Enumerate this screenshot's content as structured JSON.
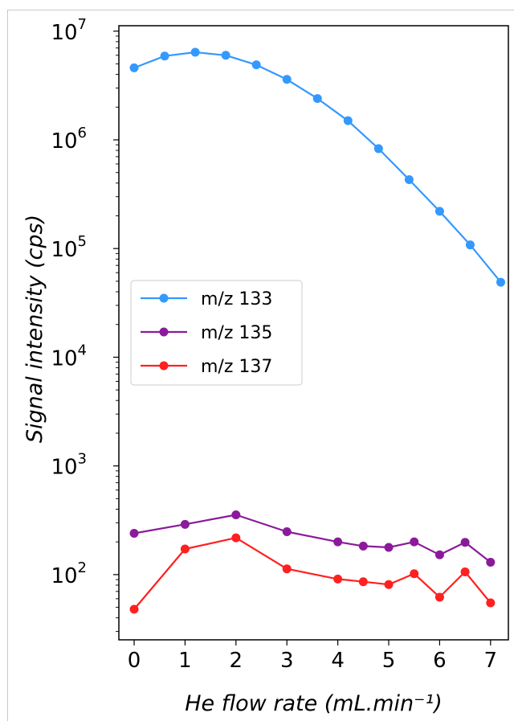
{
  "chart_data": {
    "type": "line",
    "xlabel": "He flow rate (mL.min⁻¹)",
    "ylabel": "Signal intensity (cps)",
    "xlim": [
      -0.3,
      7.35
    ],
    "ylim_log10": [
      1.4,
      7.05
    ],
    "yscale": "log",
    "x_ticks": [
      0,
      1,
      2,
      3,
      4,
      5,
      6,
      7
    ],
    "y_ticks": [
      {
        "value": 100,
        "base": "10",
        "exp": "2"
      },
      {
        "value": 1000,
        "base": "10",
        "exp": "3"
      },
      {
        "value": 10000,
        "base": "10",
        "exp": "4"
      },
      {
        "value": 100000,
        "base": "10",
        "exp": "5"
      },
      {
        "value": 1000000,
        "base": "10",
        "exp": "6"
      },
      {
        "value": 10000000,
        "base": "10",
        "exp": "7"
      }
    ],
    "legend_position": "center-left",
    "grid": false,
    "series": [
      {
        "name": "m/z 133",
        "color": "#3399ff",
        "x": [
          0,
          0.6,
          1.2,
          1.8,
          2.4,
          3.0,
          3.6,
          4.2,
          4.8,
          5.4,
          6.0,
          6.6,
          7.2
        ],
        "y": [
          4600000,
          5900000,
          6400000,
          6000000,
          4900000,
          3600000,
          2400000,
          1500000,
          830000,
          430000,
          220000,
          108000,
          49000
        ]
      },
      {
        "name": "m/z 135",
        "color": "#8b1a9b",
        "x": [
          0,
          1,
          2,
          3,
          4,
          4.5,
          5,
          5.5,
          6,
          6.5,
          7
        ],
        "y": [
          240,
          290,
          355,
          248,
          200,
          183,
          178,
          200,
          152,
          198,
          130
        ]
      },
      {
        "name": "m/z 137",
        "color": "#ff2020",
        "x": [
          0,
          1,
          2,
          3,
          4,
          4.5,
          5,
          5.5,
          6,
          6.5,
          7
        ],
        "y": [
          48,
          172,
          218,
          113,
          91,
          86,
          81,
          102,
          62,
          106,
          55
        ]
      }
    ]
  }
}
